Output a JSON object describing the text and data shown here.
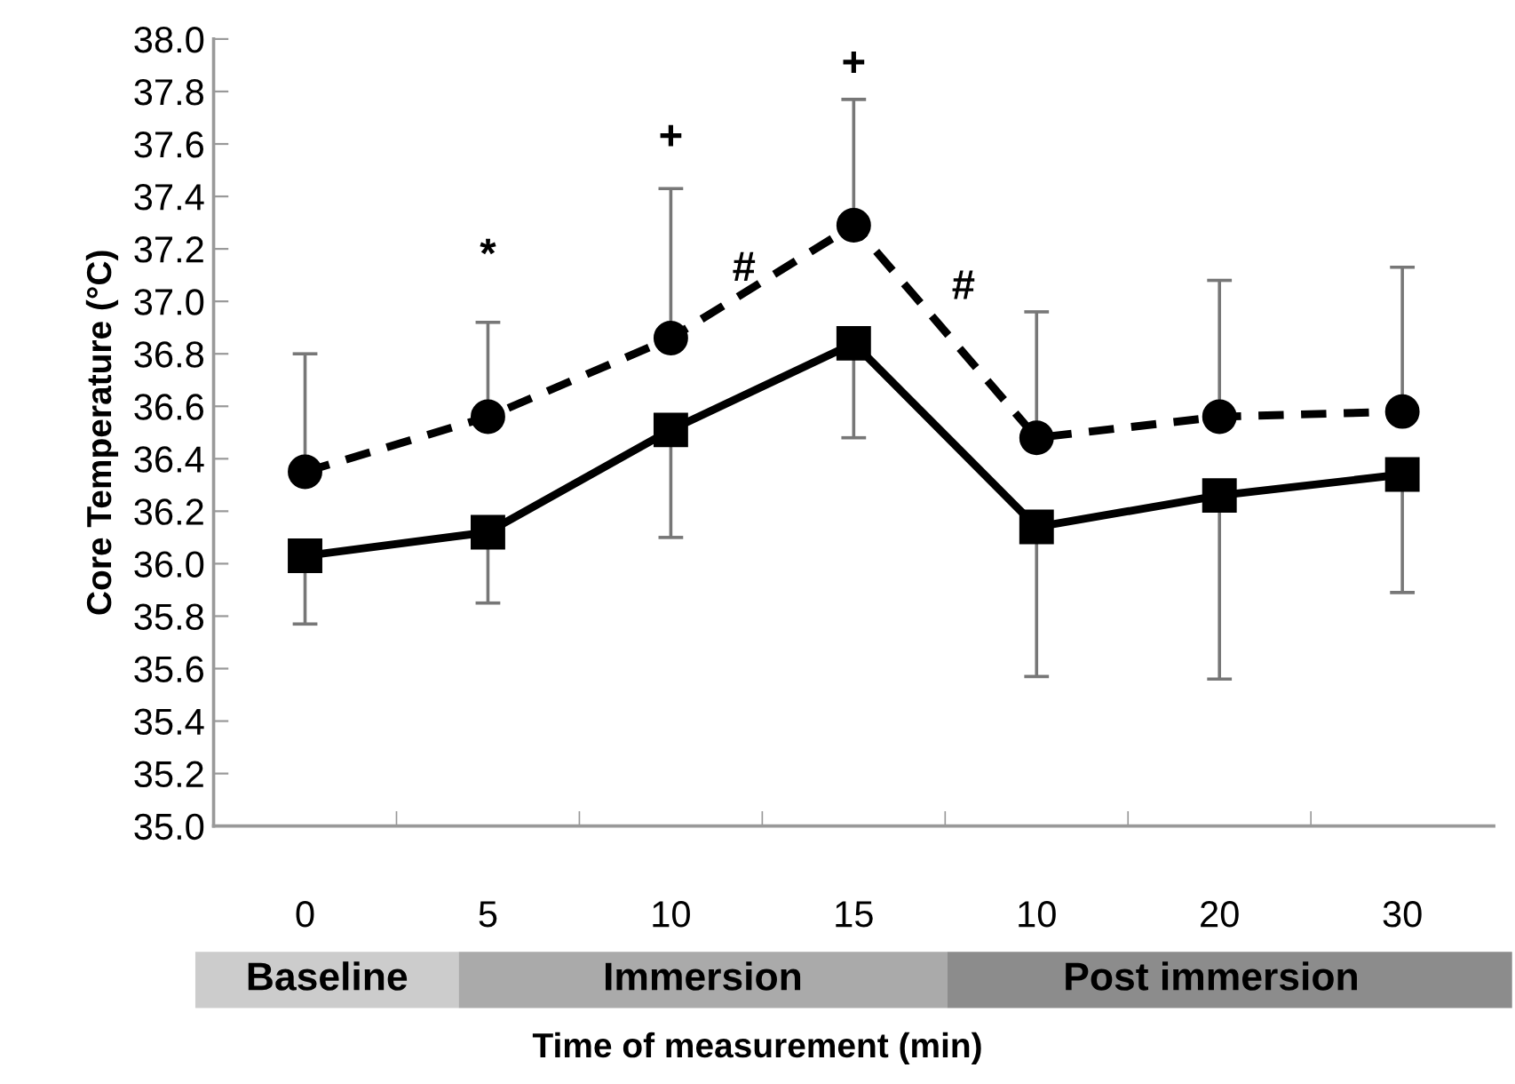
{
  "chart_data": {
    "type": "line",
    "ylabel": "Core Temperature (°C)",
    "xlabel": "Time of measurement (min)",
    "categories": [
      "0",
      "5",
      "10",
      "15",
      "10",
      "20",
      "30"
    ],
    "series": [
      {
        "color": "#000000",
        "marker": "circle",
        "line_style": "dashed",
        "values": [
          36.35,
          36.56,
          36.86,
          37.29,
          36.48,
          36.56,
          36.58
        ],
        "errors": [
          [
            36.35,
            36.8
          ],
          [
            36.56,
            36.92
          ],
          [
            36.86,
            37.43
          ],
          [
            37.29,
            37.77
          ],
          [
            36.48,
            36.96
          ],
          [
            36.56,
            37.08
          ],
          [
            36.58,
            37.13
          ]
        ]
      },
      {
        "color": "#000000",
        "marker": "square",
        "line_style": "solid",
        "values": [
          36.03,
          36.12,
          36.51,
          36.84,
          36.14,
          36.26,
          36.34
        ],
        "errors": [
          [
            35.77,
            36.03
          ],
          [
            35.85,
            36.12
          ],
          [
            36.1,
            36.51
          ],
          [
            36.48,
            36.84
          ],
          [
            35.57,
            36.14
          ],
          [
            35.56,
            36.26
          ],
          [
            35.89,
            36.34
          ]
        ]
      }
    ],
    "ylim": [
      35,
      38
    ],
    "yticks": [
      {
        "value": 35,
        "label": "35.0"
      },
      35.2,
      35.4,
      35.6,
      35.8,
      {
        "value": 36,
        "label": "36.0"
      },
      36.2,
      36.4,
      36.6,
      36.8,
      {
        "value": 37,
        "label": "37.0"
      },
      37.2,
      37.4,
      37.6,
      37.8,
      {
        "value": 38,
        "label": "38.0"
      }
    ],
    "grid": false,
    "legend": false,
    "annotations": [
      "*",
      "+",
      "#",
      "+",
      "#",
      "Baseline",
      "Immersion",
      "Post immersion"
    ]
  }
}
